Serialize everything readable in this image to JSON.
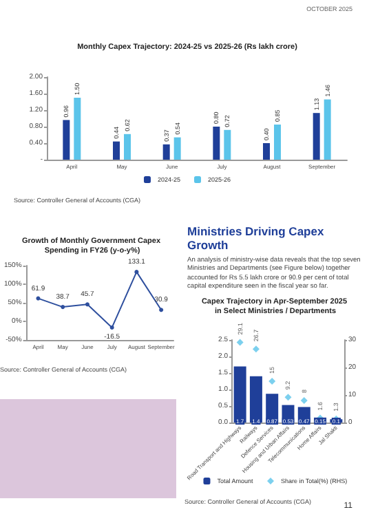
{
  "chart_data": [
    {
      "type": "bar",
      "title": "Monthly Capex Trajectory: 2024-25 vs 2025-26 (Rs lakh crore)",
      "categories": [
        "April",
        "May",
        "June",
        "July",
        "August",
        "September"
      ],
      "series": [
        {
          "name": "2024-25",
          "color": "#1f3f99",
          "values": [
            0.96,
            0.44,
            0.37,
            0.8,
            0.4,
            1.13
          ],
          "value_labels": [
            "0.96",
            "0.44",
            "0.37",
            "0.80",
            "0.40",
            "1.13"
          ]
        },
        {
          "name": "2025-26",
          "color": "#5bc4ea",
          "values": [
            1.5,
            0.62,
            0.54,
            0.72,
            0.85,
            1.46
          ],
          "value_labels": [
            "1.50",
            "0.62",
            "0.54",
            "0.72",
            "0.85",
            "1.46"
          ]
        }
      ],
      "ylim": [
        0,
        2
      ],
      "yticks": [
        {
          "value": 0,
          "label": "-"
        },
        {
          "value": 0.4,
          "label": "0.40"
        },
        {
          "value": 0.8,
          "label": "0.80"
        },
        {
          "value": 1.2,
          "label": "1.20"
        },
        {
          "value": 1.6,
          "label": "1.60"
        },
        {
          "value": 2,
          "label": "2.00"
        }
      ],
      "legend": "bottom",
      "grid": false,
      "annotations": [
        "Source: Controller General of Accounts (CGA)"
      ]
    },
    {
      "type": "line",
      "title": "Growth of Monthly Government Capex Spending in FY26 (y-o-y%)",
      "categories": [
        "April",
        "May",
        "June",
        "July",
        "August",
        "September"
      ],
      "series": [
        {
          "color": "#2e4f9e",
          "values": [
            61.9,
            38.7,
            45.7,
            -16.5,
            133.1,
            30.9
          ]
        }
      ],
      "marker": "circle",
      "line_style": "solid",
      "data_labels": true,
      "ylim": [
        -50,
        150
      ],
      "yticks": [
        {
          "value": -50,
          "label": "-50%"
        },
        {
          "value": 0,
          "label": "0%"
        },
        {
          "value": 50,
          "label": "50%"
        },
        {
          "value": 100,
          "label": "100%"
        },
        {
          "value": 150,
          "label": "150%"
        }
      ],
      "grid": false,
      "annotations": [
        "Source: Controller General of Accounts (CGA)"
      ]
    },
    {
      "type": "other",
      "title": "Ministries Driving Capex Growth",
      "annotations": [
        "An analysis of ministry-wise data reveals that the top seven Ministries and Departments (see Figure below) together accounted for Rs 5.5 lakh crore or 90.9 per cent of total capital expenditure seen in the fiscal year so far.",
        "OCTOBER 2025",
        "11"
      ]
    },
    {
      "type": "bar",
      "title": "Capex Trajectory in Apr-September 2025 in Select Ministries / Departments",
      "categories": [
        "Road Transport and Highways",
        "Railways",
        "Defence Services",
        "Housing and Urban Affairs",
        "Telecommunications",
        "Home Affairs",
        "Jal Shakti"
      ],
      "series": [
        {
          "name": "Total Amount",
          "color": "#1f3f99",
          "values": [
            1.7,
            1.4,
            0.87,
            0.53,
            0.47,
            0.15,
            0.1
          ]
        },
        {
          "name": "Share in Total(%) (RHS)",
          "type": "scatter",
          "axis": "y2",
          "marker": "diamond",
          "color": "#5bc4ea",
          "values": [
            29.1,
            26.7,
            15,
            9.2,
            8,
            1.6,
            1.3
          ]
        }
      ],
      "data_labels": true,
      "ylim": [
        0,
        2.5
      ],
      "yticks": [
        {
          "value": 0,
          "label": "0.0"
        },
        0.5,
        {
          "value": 1,
          "label": "1.0"
        },
        1.5,
        {
          "value": 2,
          "label": "2.0"
        },
        2.5
      ],
      "y2lim": [
        0,
        30
      ],
      "y2ticks": [
        0,
        10,
        20,
        30
      ],
      "legend": "bottom",
      "grid": false,
      "annotations": [
        "Source: Controller General of Accounts (CGA)"
      ]
    }
  ]
}
